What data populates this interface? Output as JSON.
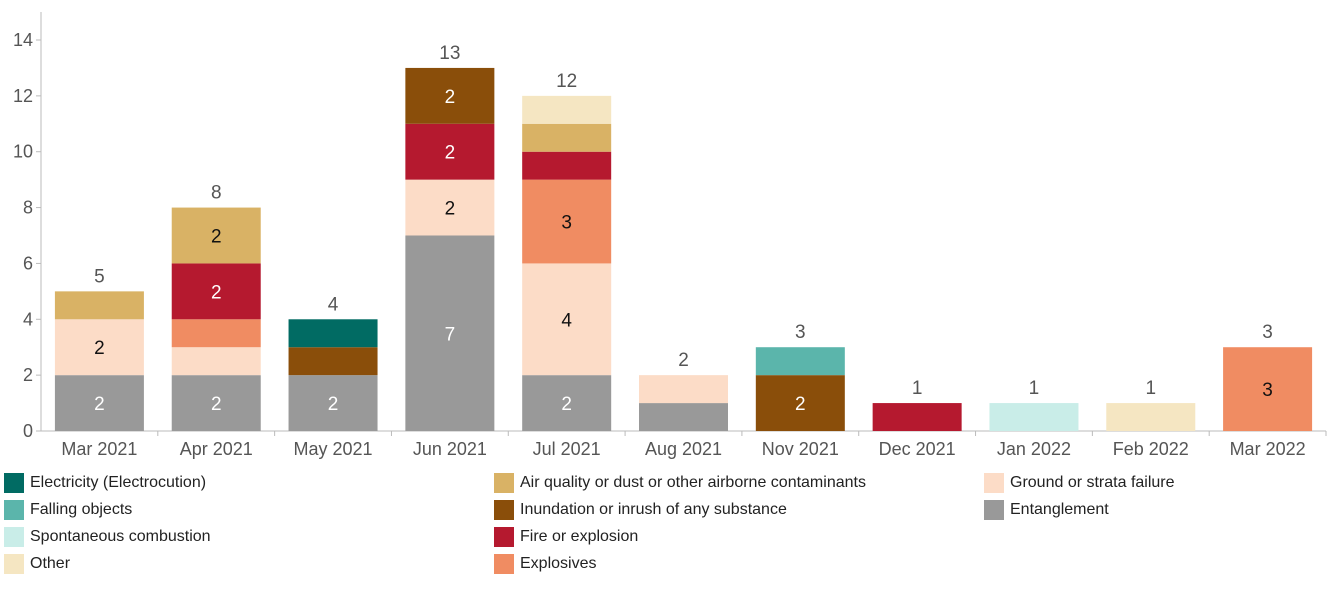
{
  "chart_data": {
    "type": "bar",
    "stacked": true,
    "categories": [
      "Mar 2021",
      "Apr 2021",
      "May 2021",
      "Jun 2021",
      "Jul 2021",
      "Aug 2021",
      "Nov 2021",
      "Dec 2021",
      "Jan 2022",
      "Feb 2022",
      "Mar 2022"
    ],
    "totals": [
      5,
      8,
      4,
      13,
      12,
      2,
      3,
      1,
      1,
      1,
      3
    ],
    "ylim": [
      0,
      14
    ],
    "yticks": [
      0,
      2,
      4,
      6,
      8,
      10,
      12,
      14
    ],
    "grid": false,
    "legend_position": "bottom",
    "series": [
      {
        "name": "Entanglement",
        "color": "#999999",
        "values": [
          2,
          2,
          2,
          7,
          2,
          1,
          0,
          0,
          0,
          0,
          0
        ]
      },
      {
        "name": "Ground or strata failure",
        "color": "#fcdcc7",
        "values": [
          2,
          1,
          0,
          2,
          4,
          1,
          0,
          0,
          0,
          0,
          0
        ]
      },
      {
        "name": "Explosives",
        "color": "#f08c62",
        "values": [
          0,
          1,
          0,
          0,
          3,
          0,
          0,
          0,
          0,
          0,
          3
        ]
      },
      {
        "name": "Fire or explosion",
        "color": "#b5192f",
        "values": [
          0,
          2,
          0,
          2,
          1,
          0,
          0,
          1,
          0,
          0,
          0
        ]
      },
      {
        "name": "Inundation or inrush of any substance",
        "color": "#8a4e0a",
        "values": [
          0,
          0,
          1,
          2,
          0,
          0,
          2,
          0,
          0,
          0,
          0
        ]
      },
      {
        "name": "Electricity (Electrocution)",
        "color": "#016b63",
        "values": [
          0,
          0,
          1,
          0,
          0,
          0,
          0,
          0,
          0,
          0,
          0
        ]
      },
      {
        "name": "Falling objects",
        "color": "#5bb5ab",
        "values": [
          0,
          0,
          0,
          0,
          0,
          0,
          1,
          0,
          0,
          0,
          0
        ]
      },
      {
        "name": "Air quality or dust or other airborne contaminants",
        "color": "#d9b265",
        "values": [
          1,
          2,
          0,
          0,
          1,
          0,
          0,
          0,
          0,
          0,
          0
        ]
      },
      {
        "name": "Spontaneous combustion",
        "color": "#c9ede8",
        "values": [
          0,
          0,
          0,
          0,
          0,
          0,
          0,
          0,
          1,
          0,
          0
        ]
      },
      {
        "name": "Other",
        "color": "#f5e6c2",
        "values": [
          0,
          0,
          0,
          0,
          1,
          0,
          0,
          0,
          0,
          1,
          0
        ]
      }
    ],
    "legend_order": [
      "Electricity (Electrocution)",
      "Falling objects",
      "Spontaneous combustion",
      "Other",
      "Air quality or dust or other airborne contaminants",
      "Inundation or inrush of any substance",
      "Fire or explosion",
      "Explosives",
      "Ground or strata failure",
      "Entanglement"
    ]
  }
}
